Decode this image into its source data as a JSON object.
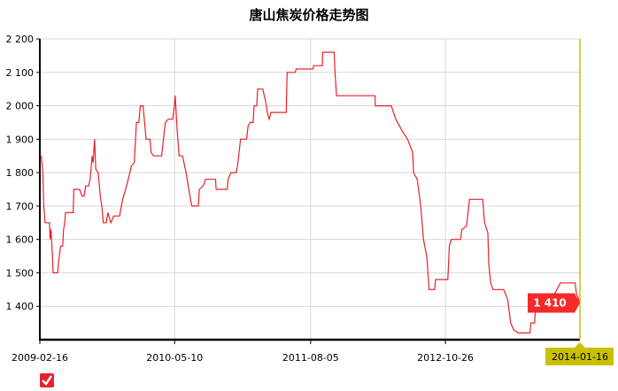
{
  "chart_data": {
    "type": "line",
    "title": "唐山焦炭价格走势图",
    "xlabel": "",
    "ylabel": "",
    "ylim": [
      1300,
      2200
    ],
    "xlim": [
      "2009-02-16",
      "2014-01-16"
    ],
    "y_ticks": [
      {
        "value": 1400,
        "label": "1 400"
      },
      {
        "value": 1500,
        "label": "1 500"
      },
      {
        "value": 1600,
        "label": "1 600"
      },
      {
        "value": 1700,
        "label": "1 700"
      },
      {
        "value": 1800,
        "label": "1 800"
      },
      {
        "value": 1900,
        "label": "1 900"
      },
      {
        "value": 2000,
        "label": "2 000"
      },
      {
        "value": 2100,
        "label": "2 100"
      },
      {
        "value": 2200,
        "label": "2 200"
      }
    ],
    "x_ticks": [
      "2009-02-16",
      "2010-05-10",
      "2011-08-05",
      "2012-10-26"
    ],
    "grid": true,
    "line_color": "#e8202a",
    "crosshair_color": "#c8c000",
    "tooltip": {
      "date": "2014-01-16",
      "value_label": "1 410",
      "color": "#f42a2a"
    },
    "series": [
      {
        "x": [
          "2009-02-16",
          "2009-02-21",
          "2009-02-26",
          "2009-03-01",
          "2009-03-03",
          "2009-03-05",
          "2009-03-20",
          "2009-03-22",
          "2009-03-25",
          "2009-03-30",
          "2009-04-01",
          "2009-04-16",
          "2009-04-19",
          "2009-04-26",
          "2009-05-03",
          "2009-05-06",
          "2009-05-10",
          "2009-05-12",
          "2009-06-07",
          "2009-06-09",
          "2009-06-28",
          "2009-07-06",
          "2009-07-13",
          "2009-07-18",
          "2009-07-28",
          "2009-08-02",
          "2009-08-09",
          "2009-08-12",
          "2009-08-17",
          "2009-08-21",
          "2009-08-29",
          "2009-09-05",
          "2009-09-10",
          "2009-09-15",
          "2009-09-25",
          "2009-09-30",
          "2009-10-10",
          "2009-10-19",
          "2009-11-08",
          "2009-11-18",
          "2009-11-28",
          "2009-12-07",
          "2009-12-17",
          "2009-12-27",
          "2010-01-03",
          "2010-01-11",
          "2010-01-16",
          "2010-01-25",
          "2010-01-30",
          "2010-02-04",
          "2010-02-17",
          "2010-02-21",
          "2010-03-01",
          "2010-03-28",
          "2010-04-09",
          "2010-04-19",
          "2010-05-04",
          "2010-05-09",
          "2010-05-12",
          "2010-05-18",
          "2010-05-25",
          "2010-06-05",
          "2010-06-17",
          "2010-06-26",
          "2010-07-06",
          "2010-07-28",
          "2010-07-31",
          "2010-08-13",
          "2010-08-21",
          "2010-09-23",
          "2010-09-25",
          "2010-11-01",
          "2010-11-04",
          "2010-11-13",
          "2010-12-01",
          "2010-12-05",
          "2010-12-15",
          "2011-01-04",
          "2011-01-09",
          "2011-01-17",
          "2011-01-26",
          "2011-01-29",
          "2011-02-07",
          "2011-02-10",
          "2011-02-27",
          "2011-03-04",
          "2011-03-09",
          "2011-03-14",
          "2011-03-20",
          "2011-03-26",
          "2011-05-16",
          "2011-05-19",
          "2011-06-15",
          "2011-06-18",
          "2011-08-13",
          "2011-08-15",
          "2011-09-13",
          "2011-09-14",
          "2011-10-22",
          "2011-10-25",
          "2011-10-30",
          "2012-03-06",
          "2012-03-07",
          "2012-04-29",
          "2012-05-14",
          "2012-06-07",
          "2012-06-22",
          "2012-07-09",
          "2012-07-12",
          "2012-07-24",
          "2012-08-05",
          "2012-08-14",
          "2012-08-25",
          "2012-09-02",
          "2012-09-20",
          "2012-09-23",
          "2012-11-03",
          "2012-11-08",
          "2012-11-14",
          "2012-12-15",
          "2012-12-20",
          "2013-01-04",
          "2013-01-14",
          "2013-02-27",
          "2013-03-05",
          "2013-03-16",
          "2013-03-19",
          "2013-03-25",
          "2013-04-02",
          "2013-05-07",
          "2013-05-12",
          "2013-05-21",
          "2013-05-31",
          "2013-06-10",
          "2013-06-25",
          "2013-08-03",
          "2013-08-06",
          "2013-08-18",
          "2013-08-23",
          "2013-10-26",
          "2013-11-12",
          "2013-12-31",
          "2014-01-04",
          "2014-01-16"
        ],
        "y": [
          1850,
          1850,
          1800,
          1700,
          1680,
          1650,
          1650,
          1600,
          1630,
          1550,
          1500,
          1500,
          1530,
          1580,
          1580,
          1630,
          1650,
          1680,
          1680,
          1750,
          1750,
          1730,
          1730,
          1760,
          1760,
          1780,
          1850,
          1830,
          1900,
          1810,
          1800,
          1730,
          1700,
          1650,
          1650,
          1680,
          1650,
          1670,
          1670,
          1720,
          1750,
          1780,
          1820,
          1830,
          1950,
          1950,
          2000,
          2000,
          1950,
          1900,
          1900,
          1860,
          1850,
          1850,
          1950,
          1960,
          1960,
          2000,
          2030,
          1930,
          1850,
          1850,
          1800,
          1750,
          1700,
          1700,
          1750,
          1760,
          1780,
          1780,
          1750,
          1750,
          1780,
          1800,
          1800,
          1820,
          1900,
          1900,
          1940,
          1950,
          1950,
          2000,
          2000,
          2050,
          2050,
          2030,
          2010,
          1980,
          1960,
          1980,
          1980,
          2100,
          2100,
          2110,
          2110,
          2120,
          2120,
          2160,
          2160,
          2100,
          2030,
          2030,
          2000,
          2000,
          1960,
          1920,
          1900,
          1860,
          1800,
          1780,
          1700,
          1600,
          1550,
          1450,
          1450,
          1480,
          1480,
          1580,
          1600,
          1600,
          1630,
          1640,
          1720,
          1720,
          1650,
          1620,
          1530,
          1470,
          1450,
          1450,
          1440,
          1420,
          1350,
          1330,
          1320,
          1320,
          1350,
          1350,
          1410,
          1440,
          1470,
          1470,
          1440,
          1410
        ]
      }
    ]
  }
}
